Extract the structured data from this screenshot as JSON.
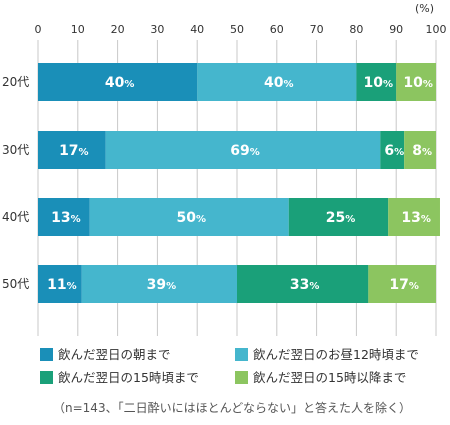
{
  "chart_data": {
    "type": "bar",
    "orientation": "horizontal",
    "stacked": true,
    "unit": "(%)",
    "xlim": [
      0,
      100
    ],
    "xticks": [
      "0",
      "10",
      "20",
      "30",
      "40",
      "50",
      "60",
      "70",
      "80",
      "90",
      "100"
    ],
    "categories": [
      "20代",
      "30代",
      "40代",
      "50代"
    ],
    "series": [
      {
        "name": "飲んだ翌日の朝まで",
        "color": "#1a8fb8",
        "values": [
          40,
          17,
          13,
          11
        ]
      },
      {
        "name": "飲んだ翌日のお昼12時頃まで",
        "color": "#45b6cd",
        "values": [
          40,
          69,
          50,
          39
        ]
      },
      {
        "name": "飲んだ翌日の15時頃まで",
        "color": "#1aa079",
        "values": [
          10,
          6,
          25,
          33
        ]
      },
      {
        "name": "飲んだ翌日の15時以降まで",
        "color": "#8cc560",
        "values": [
          10,
          8,
          13,
          17
        ]
      }
    ],
    "value_label_suffix": "%",
    "grid": true,
    "legend_position": "bottom",
    "note": "（n=143、「二日酔いにはほとんどならない」と答えた人を除く）"
  }
}
